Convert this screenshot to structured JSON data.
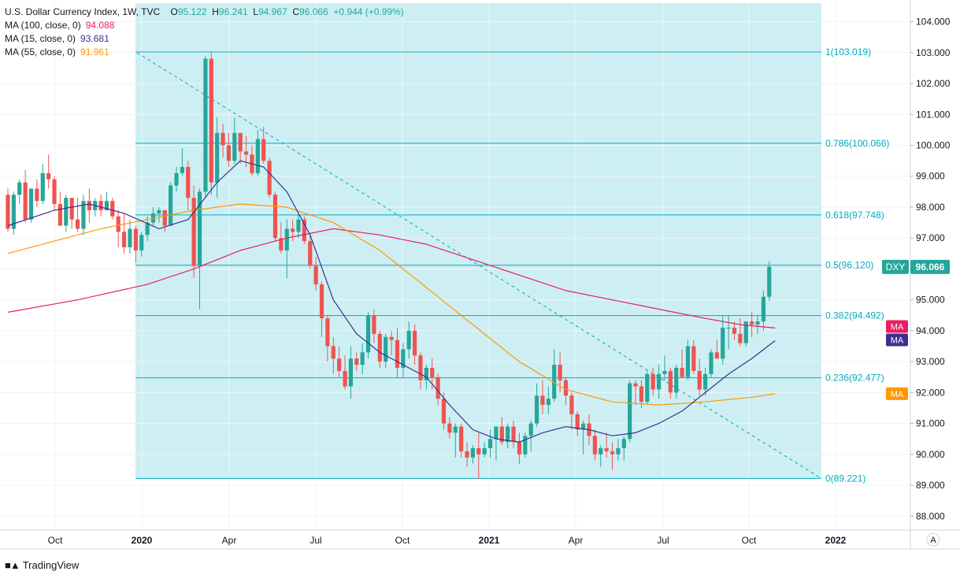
{
  "legend": {
    "title": "U.S. Dollar Currency Index, 1W, TVC",
    "ohlc": {
      "o_label": "O",
      "o": "95.122",
      "h_label": "H",
      "h": "96.241",
      "l_label": "L",
      "l": "94.967",
      "c_label": "C",
      "c": "96.066",
      "chg": "+0.944 (+0.99%)"
    },
    "ma": [
      {
        "label": "MA (100, close, 0)",
        "value": "94.088",
        "color": "#e91e63"
      },
      {
        "label": "MA (15, close, 0)",
        "value": "93.681",
        "color": "#3f2e8f"
      },
      {
        "label": "MA (55, close, 0)",
        "value": "91.961",
        "color": "#ff9800"
      }
    ]
  },
  "footer": {
    "brand": "TradingView",
    "logo": "tv-logo-icon"
  },
  "auto_scale": "A",
  "colors": {
    "up": "#26a69a",
    "down": "#ef5350",
    "fib_fill": "#cdeff3",
    "fib_line": "#00acc1",
    "ma100": "#e91e63",
    "ma15": "#3f2e8f",
    "ma55": "#ff9800",
    "dxy": "#26a69a"
  },
  "chart_data": {
    "type": "candlestick",
    "symbol": "DXY",
    "last_label": "DXY",
    "last_value": "96.066",
    "ylim": [
      88.0,
      104.0
    ],
    "y_ticks": [
      "104.000",
      "103.000",
      "102.000",
      "101.000",
      "100.000",
      "99.000",
      "98.000",
      "97.000",
      "96.000",
      "95.000",
      "94.000",
      "93.000",
      "92.000",
      "91.000",
      "90.000",
      "89.000",
      "88.000"
    ],
    "x_ticks": [
      "Oct",
      "2020",
      "Apr",
      "Jul",
      "Oct",
      "2021",
      "Apr",
      "Jul",
      "Oct",
      "2022"
    ],
    "fib_levels": [
      {
        "ratio": "1",
        "value": 103.019,
        "label": "1(103.019)"
      },
      {
        "ratio": "0.786",
        "value": 100.066,
        "label": "0.786(100.066)"
      },
      {
        "ratio": "0.618",
        "value": 97.748,
        "label": "0.618(97.748)"
      },
      {
        "ratio": "0.5",
        "value": 96.12,
        "label": "0.5(96.120)"
      },
      {
        "ratio": "0.382",
        "value": 94.492,
        "label": "0.382(94.492)"
      },
      {
        "ratio": "0.236",
        "value": 92.477,
        "label": "0.236(92.477)"
      },
      {
        "ratio": "0",
        "value": 89.221,
        "label": "0(89.221)"
      }
    ],
    "trendline": {
      "from": [
        "2019-12-23",
        103.0
      ],
      "to": [
        "2021-12-27",
        89.2
      ],
      "style": "dashed"
    },
    "ma_tags": [
      {
        "label": "MA",
        "value": 94.088,
        "series": "ma100"
      },
      {
        "label": "MA",
        "value": 93.681,
        "series": "ma15"
      },
      {
        "label": "MA",
        "value": 91.961,
        "series": "ma55"
      }
    ],
    "candles": [
      [
        98.4,
        98.6,
        97.2,
        97.3
      ],
      [
        97.3,
        98.5,
        97.1,
        98.4
      ],
      [
        98.4,
        98.9,
        98.1,
        98.8
      ],
      [
        98.8,
        99.2,
        97.5,
        97.6
      ],
      [
        97.6,
        98.6,
        97.5,
        98.6
      ],
      [
        98.6,
        98.9,
        98.0,
        98.2
      ],
      [
        98.2,
        99.4,
        98.1,
        99.1
      ],
      [
        99.1,
        99.7,
        98.6,
        98.9
      ],
      [
        98.9,
        99.0,
        97.9,
        98.1
      ],
      [
        98.1,
        98.5,
        97.4,
        97.4
      ],
      [
        97.4,
        98.4,
        97.2,
        98.3
      ],
      [
        98.3,
        98.3,
        97.3,
        97.6
      ],
      [
        97.6,
        98.3,
        97.2,
        97.3
      ],
      [
        97.3,
        98.4,
        97.1,
        98.2
      ],
      [
        98.2,
        98.6,
        97.5,
        97.9
      ],
      [
        97.9,
        98.3,
        97.7,
        98.2
      ],
      [
        98.2,
        98.4,
        97.7,
        97.9
      ],
      [
        97.9,
        98.5,
        97.9,
        98.2
      ],
      [
        98.2,
        98.3,
        97.6,
        97.7
      ],
      [
        97.7,
        97.9,
        96.7,
        97.2
      ],
      [
        97.2,
        97.8,
        96.5,
        96.7
      ],
      [
        96.7,
        97.6,
        96.5,
        97.3
      ],
      [
        97.3,
        97.4,
        96.2,
        96.6
      ],
      [
        96.6,
        97.2,
        96.4,
        97.1
      ],
      [
        97.1,
        97.7,
        96.9,
        97.5
      ],
      [
        97.5,
        98.0,
        97.4,
        97.8
      ],
      [
        97.8,
        98.0,
        97.5,
        97.9
      ],
      [
        97.9,
        97.9,
        97.2,
        97.4
      ],
      [
        97.4,
        98.8,
        97.4,
        98.7
      ],
      [
        98.7,
        99.3,
        98.5,
        99.1
      ],
      [
        99.1,
        99.9,
        99.0,
        99.3
      ],
      [
        99.3,
        99.5,
        97.9,
        98.3
      ],
      [
        98.3,
        98.7,
        95.7,
        96.1
      ],
      [
        96.1,
        98.6,
        94.7,
        98.5
      ],
      [
        98.5,
        102.9,
        98.3,
        102.8
      ],
      [
        102.8,
        103.0,
        98.4,
        98.8
      ],
      [
        98.8,
        100.9,
        98.3,
        100.4
      ],
      [
        100.4,
        100.7,
        99.6,
        100.0
      ],
      [
        100.0,
        100.4,
        99.3,
        99.5
      ],
      [
        99.5,
        100.9,
        99.4,
        100.4
      ],
      [
        100.4,
        100.4,
        99.4,
        99.8
      ],
      [
        99.8,
        100.3,
        99.3,
        99.7
      ],
      [
        99.7,
        100.0,
        99.0,
        99.1
      ],
      [
        99.1,
        100.5,
        99.0,
        100.2
      ],
      [
        100.2,
        100.6,
        99.4,
        99.5
      ],
      [
        99.5,
        99.6,
        98.3,
        98.4
      ],
      [
        98.4,
        98.5,
        96.9,
        97.0
      ],
      [
        97.0,
        97.5,
        96.5,
        96.6
      ],
      [
        96.6,
        97.6,
        95.7,
        97.3
      ],
      [
        97.3,
        97.6,
        96.9,
        97.2
      ],
      [
        97.2,
        97.8,
        97.0,
        97.6
      ],
      [
        97.6,
        97.7,
        96.8,
        96.9
      ],
      [
        96.9,
        97.1,
        96.0,
        96.1
      ],
      [
        96.1,
        96.4,
        95.3,
        95.5
      ],
      [
        95.5,
        95.6,
        93.8,
        94.4
      ],
      [
        94.4,
        94.5,
        93.0,
        93.5
      ],
      [
        93.5,
        93.8,
        92.6,
        93.1
      ],
      [
        93.1,
        93.5,
        92.5,
        92.7
      ],
      [
        92.7,
        93.2,
        92.1,
        92.2
      ],
      [
        92.2,
        93.5,
        91.8,
        93.1
      ],
      [
        93.1,
        93.3,
        92.7,
        92.9
      ],
      [
        92.9,
        93.6,
        92.6,
        93.3
      ],
      [
        93.3,
        94.6,
        93.1,
        94.5
      ],
      [
        94.5,
        94.7,
        93.6,
        93.9
      ],
      [
        93.9,
        94.0,
        92.8,
        93.0
      ],
      [
        93.0,
        93.9,
        92.8,
        93.8
      ],
      [
        93.8,
        94.0,
        93.2,
        93.7
      ],
      [
        93.7,
        94.1,
        92.5,
        92.8
      ],
      [
        92.8,
        93.6,
        92.5,
        93.4
      ],
      [
        93.4,
        94.3,
        93.1,
        94.0
      ],
      [
        94.0,
        94.2,
        92.9,
        93.2
      ],
      [
        93.2,
        93.3,
        92.1,
        92.4
      ],
      [
        92.4,
        92.9,
        92.1,
        92.8
      ],
      [
        92.8,
        93.1,
        92.1,
        92.5
      ],
      [
        92.5,
        92.6,
        91.6,
        91.8
      ],
      [
        91.8,
        92.0,
        90.8,
        91.0
      ],
      [
        91.0,
        91.2,
        90.5,
        90.7
      ],
      [
        90.7,
        91.0,
        89.9,
        90.9
      ],
      [
        90.9,
        91.0,
        89.9,
        90.1
      ],
      [
        90.1,
        90.4,
        89.6,
        89.9
      ],
      [
        89.9,
        90.3,
        89.7,
        90.2
      ],
      [
        90.2,
        90.7,
        89.2,
        90.0
      ],
      [
        90.0,
        90.4,
        89.9,
        90.2
      ],
      [
        90.2,
        90.8,
        89.9,
        90.5
      ],
      [
        90.5,
        90.9,
        89.8,
        90.9
      ],
      [
        90.9,
        91.2,
        90.3,
        90.4
      ],
      [
        90.4,
        91.0,
        90.2,
        90.9
      ],
      [
        90.9,
        91.1,
        90.2,
        90.4
      ],
      [
        90.4,
        90.7,
        89.7,
        90.0
      ],
      [
        90.0,
        90.7,
        89.9,
        90.6
      ],
      [
        90.6,
        91.1,
        90.1,
        91.0
      ],
      [
        91.0,
        92.3,
        90.9,
        91.9
      ],
      [
        91.9,
        92.4,
        91.3,
        91.6
      ],
      [
        91.6,
        92.2,
        91.3,
        91.8
      ],
      [
        91.8,
        93.4,
        91.7,
        92.9
      ],
      [
        92.9,
        93.3,
        92.0,
        92.4
      ],
      [
        92.4,
        92.5,
        91.6,
        91.9
      ],
      [
        91.9,
        92.0,
        90.8,
        91.3
      ],
      [
        91.3,
        91.4,
        90.6,
        90.8
      ],
      [
        90.8,
        91.1,
        90.0,
        91.0
      ],
      [
        91.0,
        91.3,
        90.3,
        90.6
      ],
      [
        90.6,
        90.8,
        89.8,
        90.0
      ],
      [
        90.0,
        90.3,
        89.6,
        90.2
      ],
      [
        90.2,
        90.7,
        89.9,
        90.1
      ],
      [
        90.1,
        90.4,
        89.5,
        90.0
      ],
      [
        90.0,
        90.5,
        89.8,
        90.2
      ],
      [
        90.2,
        90.6,
        89.8,
        90.5
      ],
      [
        90.5,
        92.4,
        90.4,
        92.3
      ],
      [
        92.3,
        92.4,
        91.6,
        92.2
      ],
      [
        92.2,
        92.4,
        91.5,
        91.7
      ],
      [
        91.7,
        92.7,
        91.6,
        92.6
      ],
      [
        92.6,
        92.8,
        91.9,
        92.1
      ],
      [
        92.1,
        92.9,
        91.8,
        92.6
      ],
      [
        92.6,
        93.2,
        92.4,
        92.7
      ],
      [
        92.7,
        92.8,
        91.8,
        92.0
      ],
      [
        92.0,
        92.9,
        91.8,
        92.8
      ],
      [
        92.8,
        93.4,
        92.5,
        92.5
      ],
      [
        92.5,
        93.7,
        92.4,
        93.5
      ],
      [
        93.5,
        93.7,
        92.6,
        92.7
      ],
      [
        92.7,
        93.1,
        91.9,
        92.1
      ],
      [
        92.1,
        92.8,
        91.9,
        92.6
      ],
      [
        92.6,
        93.4,
        92.5,
        93.3
      ],
      [
        93.3,
        93.7,
        93.1,
        93.1
      ],
      [
        93.1,
        94.5,
        92.9,
        94.1
      ],
      [
        94.1,
        94.5,
        93.4,
        94.1
      ],
      [
        94.1,
        94.3,
        93.7,
        93.9
      ],
      [
        93.9,
        94.4,
        93.5,
        93.6
      ],
      [
        93.6,
        94.2,
        93.5,
        94.3
      ],
      [
        94.3,
        94.6,
        93.8,
        94.2
      ],
      [
        94.2,
        94.5,
        93.9,
        94.3
      ],
      [
        94.3,
        95.3,
        94.0,
        95.1
      ],
      [
        95.1,
        96.24,
        94.97,
        96.07
      ]
    ],
    "ma15": [
      [
        0,
        97.4
      ],
      [
        8,
        97.9
      ],
      [
        14,
        98.1
      ],
      [
        20,
        97.8
      ],
      [
        26,
        97.3
      ],
      [
        31,
        97.6
      ],
      [
        36,
        98.8
      ],
      [
        40,
        99.5
      ],
      [
        44,
        99.3
      ],
      [
        48,
        98.5
      ],
      [
        52,
        97.1
      ],
      [
        56,
        95.0
      ],
      [
        60,
        93.9
      ],
      [
        64,
        93.3
      ],
      [
        68,
        92.9
      ],
      [
        72,
        92.5
      ],
      [
        76,
        91.6
      ],
      [
        80,
        90.8
      ],
      [
        84,
        90.5
      ],
      [
        88,
        90.4
      ],
      [
        92,
        90.7
      ],
      [
        96,
        90.9
      ],
      [
        100,
        90.8
      ],
      [
        104,
        90.6
      ],
      [
        108,
        90.7
      ],
      [
        112,
        91.0
      ],
      [
        116,
        91.4
      ],
      [
        120,
        92.0
      ],
      [
        124,
        92.6
      ],
      [
        128,
        93.1
      ],
      [
        132,
        93.68
      ]
    ],
    "ma55": [
      [
        0,
        96.5
      ],
      [
        8,
        96.9
      ],
      [
        16,
        97.3
      ],
      [
        24,
        97.6
      ],
      [
        32,
        97.9
      ],
      [
        40,
        98.1
      ],
      [
        48,
        98.0
      ],
      [
        56,
        97.5
      ],
      [
        64,
        96.6
      ],
      [
        72,
        95.4
      ],
      [
        80,
        94.2
      ],
      [
        88,
        93.0
      ],
      [
        96,
        92.1
      ],
      [
        104,
        91.7
      ],
      [
        112,
        91.6
      ],
      [
        120,
        91.7
      ],
      [
        128,
        91.85
      ],
      [
        132,
        91.96
      ]
    ],
    "ma100": [
      [
        0,
        94.6
      ],
      [
        12,
        95.0
      ],
      [
        24,
        95.5
      ],
      [
        32,
        96.0
      ],
      [
        40,
        96.6
      ],
      [
        48,
        97.0
      ],
      [
        56,
        97.3
      ],
      [
        64,
        97.1
      ],
      [
        72,
        96.8
      ],
      [
        80,
        96.3
      ],
      [
        88,
        95.8
      ],
      [
        96,
        95.3
      ],
      [
        104,
        95.0
      ],
      [
        112,
        94.7
      ],
      [
        120,
        94.4
      ],
      [
        126,
        94.2
      ],
      [
        132,
        94.09
      ]
    ]
  }
}
